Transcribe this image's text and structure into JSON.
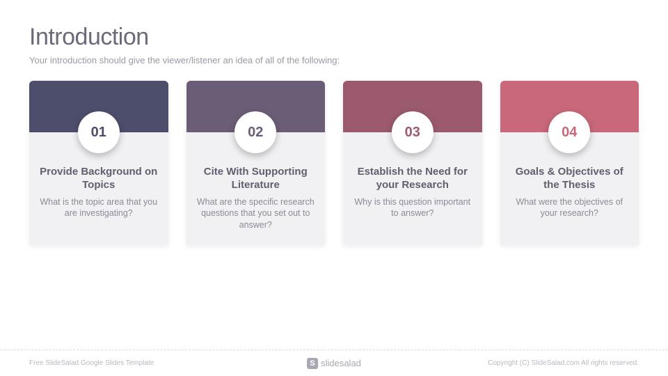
{
  "header": {
    "title": "Introduction",
    "subtitle": "Your introduction should give the viewer/listener an idea of all of the following:",
    "title_color": "#6a6a78",
    "subtitle_color": "#9a9aa5"
  },
  "cards": [
    {
      "number": "01",
      "top_color": "#4c4e6b",
      "number_color": "#4c4e6b",
      "heading": "Provide Background on Topics",
      "desc": "What is the topic area that you are investigating?"
    },
    {
      "number": "02",
      "top_color": "#6b5d76",
      "number_color": "#6b5d76",
      "heading": "Cite With Supporting Literature",
      "desc": "What are the specific research questions that you set out to answer?"
    },
    {
      "number": "03",
      "top_color": "#9b5a6e",
      "number_color": "#9b5a6e",
      "heading": "Establish the Need for your Research",
      "desc": "Why is this question important to answer?"
    },
    {
      "number": "04",
      "top_color": "#c8687a",
      "number_color": "#c8687a",
      "heading": "Goals & Objectives of the Thesis",
      "desc": "What were the objectives of your research?"
    }
  ],
  "layout": {
    "card_body_bg": "#f1f1f4",
    "badge_bg": "#ffffff",
    "heading_color": "#5f5f6d",
    "desc_color": "#8a8a95"
  },
  "footer": {
    "left": "Free SlideSalad Google Slides Template",
    "brand_letter": "S",
    "brand_text": "slidesalad",
    "right": "Copyright (C) SlideSalad.com All rights reserved."
  }
}
